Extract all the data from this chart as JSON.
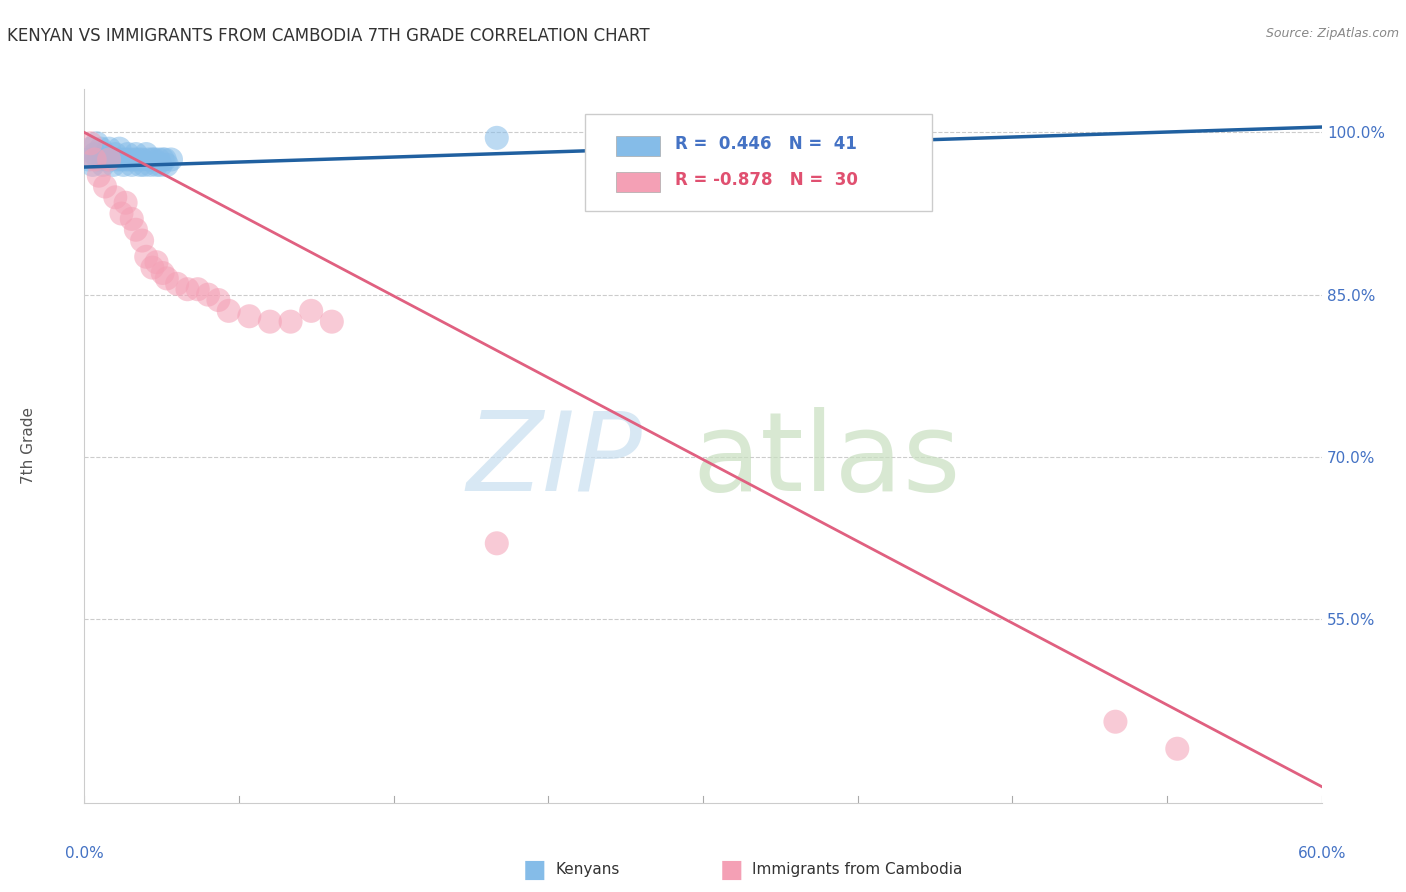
{
  "title": "KENYAN VS IMMIGRANTS FROM CAMBODIA 7TH GRADE CORRELATION CHART",
  "source": "Source: ZipAtlas.com",
  "ylabel": "7th Grade",
  "ytick_labels": [
    "100.0%",
    "85.0%",
    "70.0%",
    "55.0%"
  ],
  "ytick_values": [
    1.0,
    0.85,
    0.7,
    0.55
  ],
  "xmin": 0.0,
  "xmax": 0.6,
  "ymin": 0.38,
  "ymax": 1.04,
  "blue_R": 0.446,
  "blue_N": 41,
  "pink_R": -0.878,
  "pink_N": 30,
  "blue_color": "#85bce8",
  "pink_color": "#f4a0b5",
  "blue_line_color": "#2060a0",
  "pink_line_color": "#e06080",
  "legend_label_blue": "Kenyans",
  "legend_label_pink": "Immigrants from Cambodia",
  "blue_scatter_x": [
    0.002,
    0.003,
    0.004,
    0.005,
    0.006,
    0.007,
    0.008,
    0.009,
    0.01,
    0.011,
    0.012,
    0.013,
    0.014,
    0.015,
    0.016,
    0.017,
    0.018,
    0.019,
    0.02,
    0.021,
    0.022,
    0.023,
    0.024,
    0.025,
    0.026,
    0.027,
    0.028,
    0.029,
    0.03,
    0.031,
    0.032,
    0.033,
    0.034,
    0.035,
    0.036,
    0.037,
    0.038,
    0.039,
    0.04,
    0.042,
    0.2
  ],
  "blue_scatter_y": [
    0.975,
    0.985,
    0.97,
    0.98,
    0.99,
    0.975,
    0.985,
    0.97,
    0.98,
    0.975,
    0.985,
    0.975,
    0.97,
    0.98,
    0.975,
    0.985,
    0.975,
    0.97,
    0.975,
    0.98,
    0.975,
    0.97,
    0.975,
    0.98,
    0.975,
    0.97,
    0.975,
    0.97,
    0.98,
    0.975,
    0.97,
    0.975,
    0.975,
    0.97,
    0.975,
    0.97,
    0.975,
    0.975,
    0.97,
    0.975,
    0.995
  ],
  "pink_scatter_x": [
    0.003,
    0.005,
    0.007,
    0.01,
    0.012,
    0.015,
    0.018,
    0.02,
    0.023,
    0.025,
    0.028,
    0.03,
    0.033,
    0.035,
    0.038,
    0.04,
    0.045,
    0.05,
    0.055,
    0.06,
    0.065,
    0.07,
    0.08,
    0.09,
    0.1,
    0.11,
    0.12,
    0.2,
    0.5,
    0.53
  ],
  "pink_scatter_y": [
    0.99,
    0.975,
    0.96,
    0.95,
    0.975,
    0.94,
    0.925,
    0.935,
    0.92,
    0.91,
    0.9,
    0.885,
    0.875,
    0.88,
    0.87,
    0.865,
    0.86,
    0.855,
    0.855,
    0.85,
    0.845,
    0.835,
    0.83,
    0.825,
    0.825,
    0.835,
    0.825,
    0.62,
    0.455,
    0.43
  ],
  "blue_trendline_x": [
    0.0,
    0.6
  ],
  "blue_trendline_y": [
    0.968,
    1.005
  ],
  "pink_trendline_x": [
    0.0,
    0.6
  ],
  "pink_trendline_y": [
    1.0,
    0.395
  ]
}
